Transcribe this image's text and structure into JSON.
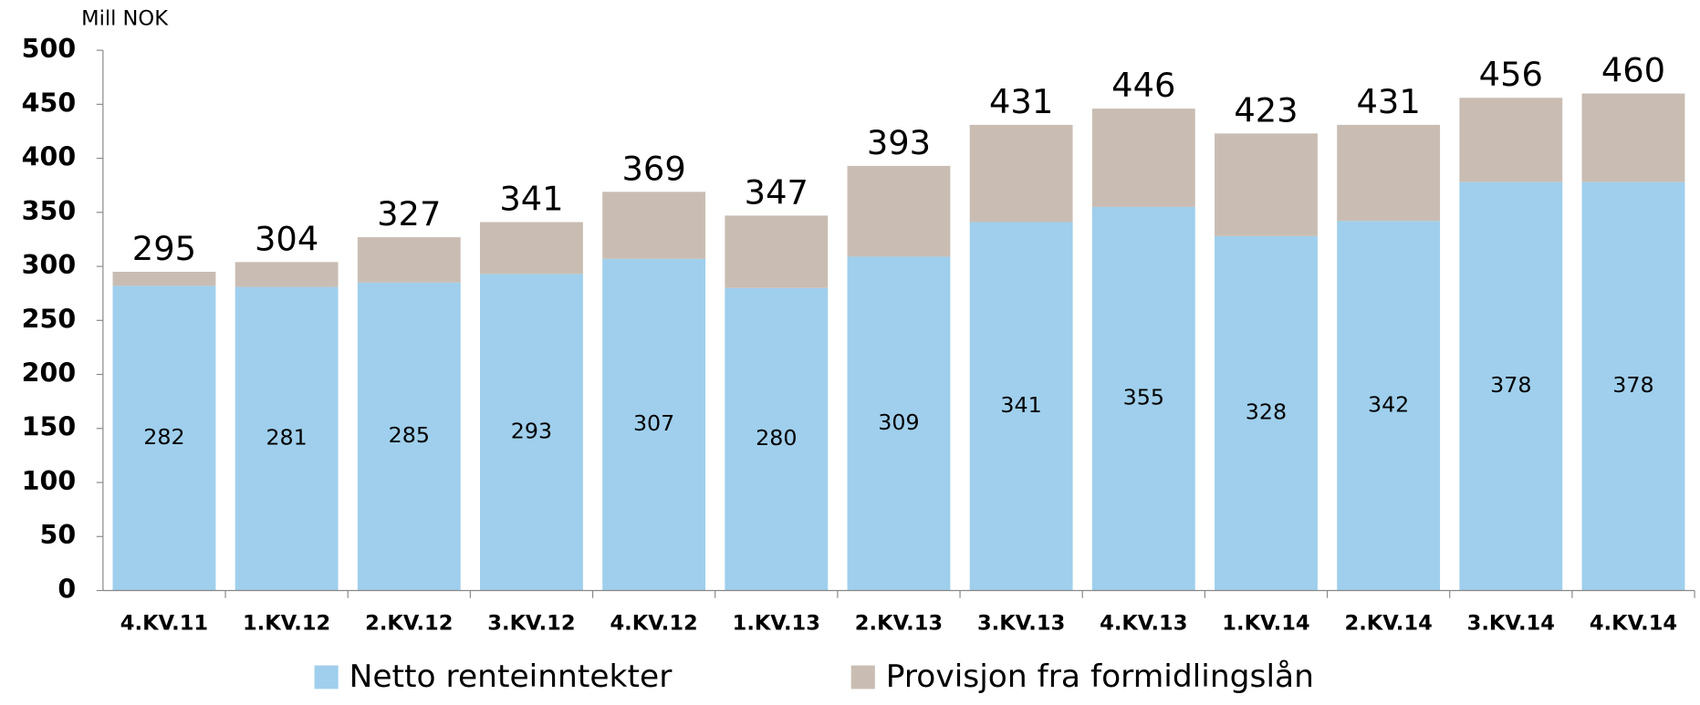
{
  "chart_data": {
    "type": "stacked_bar",
    "y_axis_label": "Mill NOK",
    "categories": [
      "4.KV.11",
      "1.KV.12",
      "2.KV.12",
      "3.KV.12",
      "4.KV.12",
      "1.KV.13",
      "2.KV.13",
      "3.KV.13",
      "4.KV.13",
      "1.KV.14",
      "2.KV.14",
      "3.KV.14",
      "4.KV.14"
    ],
    "series": [
      {
        "name": "Netto renteinntekter",
        "color": "#9fcfec",
        "values": [
          282,
          281,
          285,
          293,
          307,
          280,
          309,
          341,
          355,
          328,
          342,
          378,
          378
        ],
        "show_labels": true
      },
      {
        "name": "Provisjon fra formidlingslån",
        "color": "#c9bdb3",
        "values": [
          13,
          23,
          42,
          48,
          62,
          67,
          84,
          90,
          91,
          95,
          89,
          78,
          82
        ],
        "show_labels": false
      }
    ],
    "totals": [
      295,
      304,
      327,
      341,
      369,
      347,
      393,
      431,
      446,
      423,
      431,
      456,
      460
    ],
    "ylim": [
      0,
      500
    ],
    "yticks": [
      0,
      50,
      100,
      150,
      200,
      250,
      300,
      350,
      400,
      450,
      500
    ],
    "grid": false,
    "legend": "bottom"
  }
}
